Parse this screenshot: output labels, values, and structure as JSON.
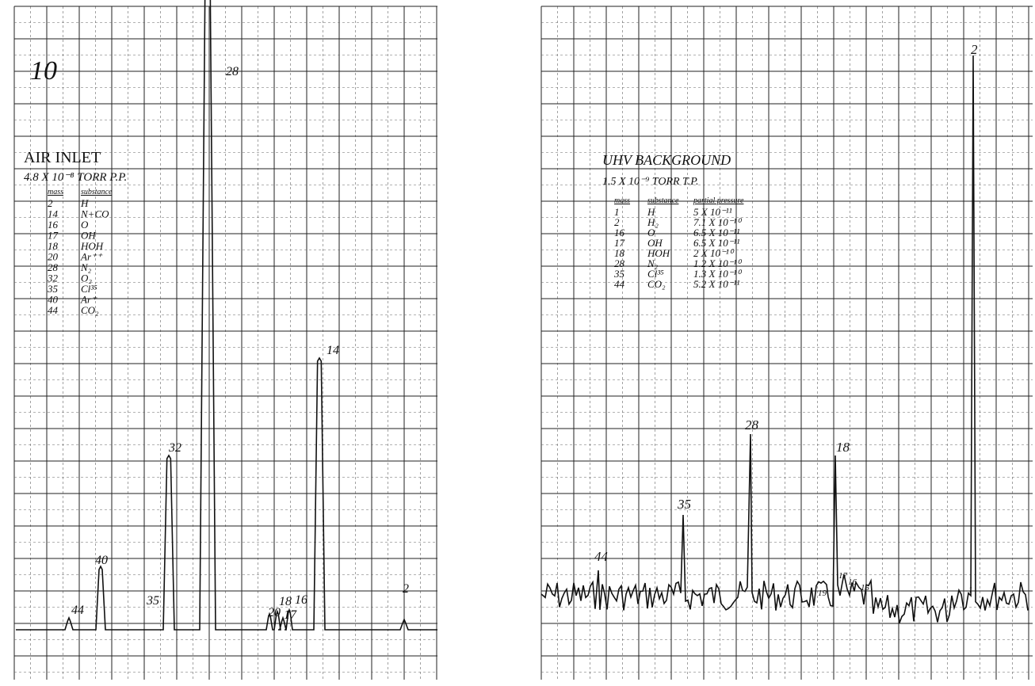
{
  "left": {
    "title": "10",
    "heading": "AIR INLET",
    "pressure": "4.8 X 10⁻⁸ TORR P.P.",
    "table": {
      "headers": [
        "mass",
        "substance"
      ],
      "rows": [
        [
          "2",
          "H"
        ],
        [
          "14",
          "N+CO"
        ],
        [
          "16",
          "O"
        ],
        [
          "17",
          "OH"
        ],
        [
          "18",
          "HOH"
        ],
        [
          "20",
          "Ar⁺⁺"
        ],
        [
          "28",
          "N₂"
        ],
        [
          "32",
          "O₂"
        ],
        [
          "35",
          "Cl³⁵"
        ],
        [
          "40",
          "Ar⁺"
        ],
        [
          "44",
          "CO₂"
        ]
      ]
    },
    "peak_labels": [
      "28",
      "14",
      "32",
      "40",
      "44",
      "35",
      "20",
      "18",
      "16",
      "17",
      "2"
    ]
  },
  "right": {
    "heading": "UHV BACKGROUND",
    "pressure": "1.5 X 10⁻⁹ TORR T.P.",
    "table": {
      "headers": [
        "mass",
        "substance",
        "partial pressure"
      ],
      "rows": [
        [
          "1",
          "H",
          "5 X 10⁻¹¹"
        ],
        [
          "2",
          "H₂",
          "7.1 X 10⁻¹⁰"
        ],
        [
          "16",
          "O",
          "6.5 X 10⁻¹¹"
        ],
        [
          "17",
          "OH",
          "6.5 X 10⁻¹¹"
        ],
        [
          "18",
          "HOH",
          "2 X 10⁻¹⁰"
        ],
        [
          "28",
          "N₂",
          "1.2 X 10⁻¹⁰"
        ],
        [
          "35",
          "Cl³⁵",
          "1.3 X 10⁻¹⁰"
        ],
        [
          "44",
          "CO₂",
          "5.2 X 10⁻¹¹"
        ]
      ]
    },
    "peak_labels": [
      "2",
      "28",
      "18",
      "35",
      "44",
      "19",
      "17",
      "16",
      "15",
      "1"
    ]
  }
}
